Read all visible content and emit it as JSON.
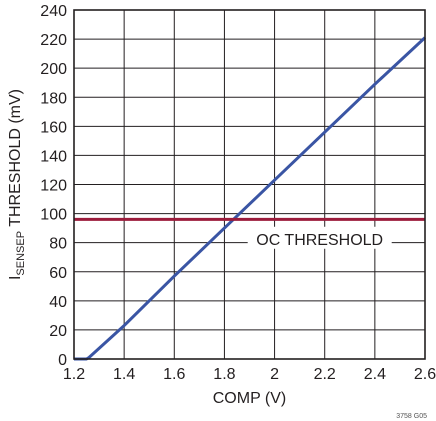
{
  "chart_data": {
    "type": "line",
    "xlabel": "COMP (V)",
    "ylabel_main": "I",
    "ylabel_sub": "SENSEP",
    "ylabel_rest": " THRESHOLD (mV)",
    "xlim": [
      1.2,
      2.6
    ],
    "ylim": [
      0,
      240
    ],
    "x_ticks": [
      1.2,
      1.4,
      1.6,
      1.8,
      2.0,
      2.2,
      2.4,
      2.6
    ],
    "x_tick_labels": [
      "1.2",
      "1.4",
      "1.6",
      "1.8",
      "2",
      "2.2",
      "2.4",
      "2.6"
    ],
    "y_ticks": [
      0,
      20,
      40,
      60,
      80,
      100,
      120,
      140,
      160,
      180,
      200,
      220,
      240
    ],
    "y_tick_labels": [
      "0",
      "20",
      "40",
      "60",
      "80",
      "100",
      "120",
      "140",
      "160",
      "180",
      "200",
      "220",
      "240"
    ],
    "grid": true,
    "series": [
      {
        "color": "#3a55a4",
        "x": [
          1.2,
          1.25,
          1.26,
          1.4,
          1.6,
          1.8,
          2.0,
          2.2,
          2.4,
          2.6
        ],
        "y": [
          0,
          0,
          1,
          23,
          57,
          90,
          123,
          156,
          189,
          221
        ]
      },
      {
        "name": "OC THRESHOLD",
        "color": "#9b1c3c",
        "x": [
          1.2,
          2.6
        ],
        "y": [
          96,
          96
        ]
      }
    ],
    "annotations": [
      {
        "text": "OC THRESHOLD",
        "x": 2.18,
        "y": 82
      }
    ],
    "figure_id": "3758 G05"
  }
}
